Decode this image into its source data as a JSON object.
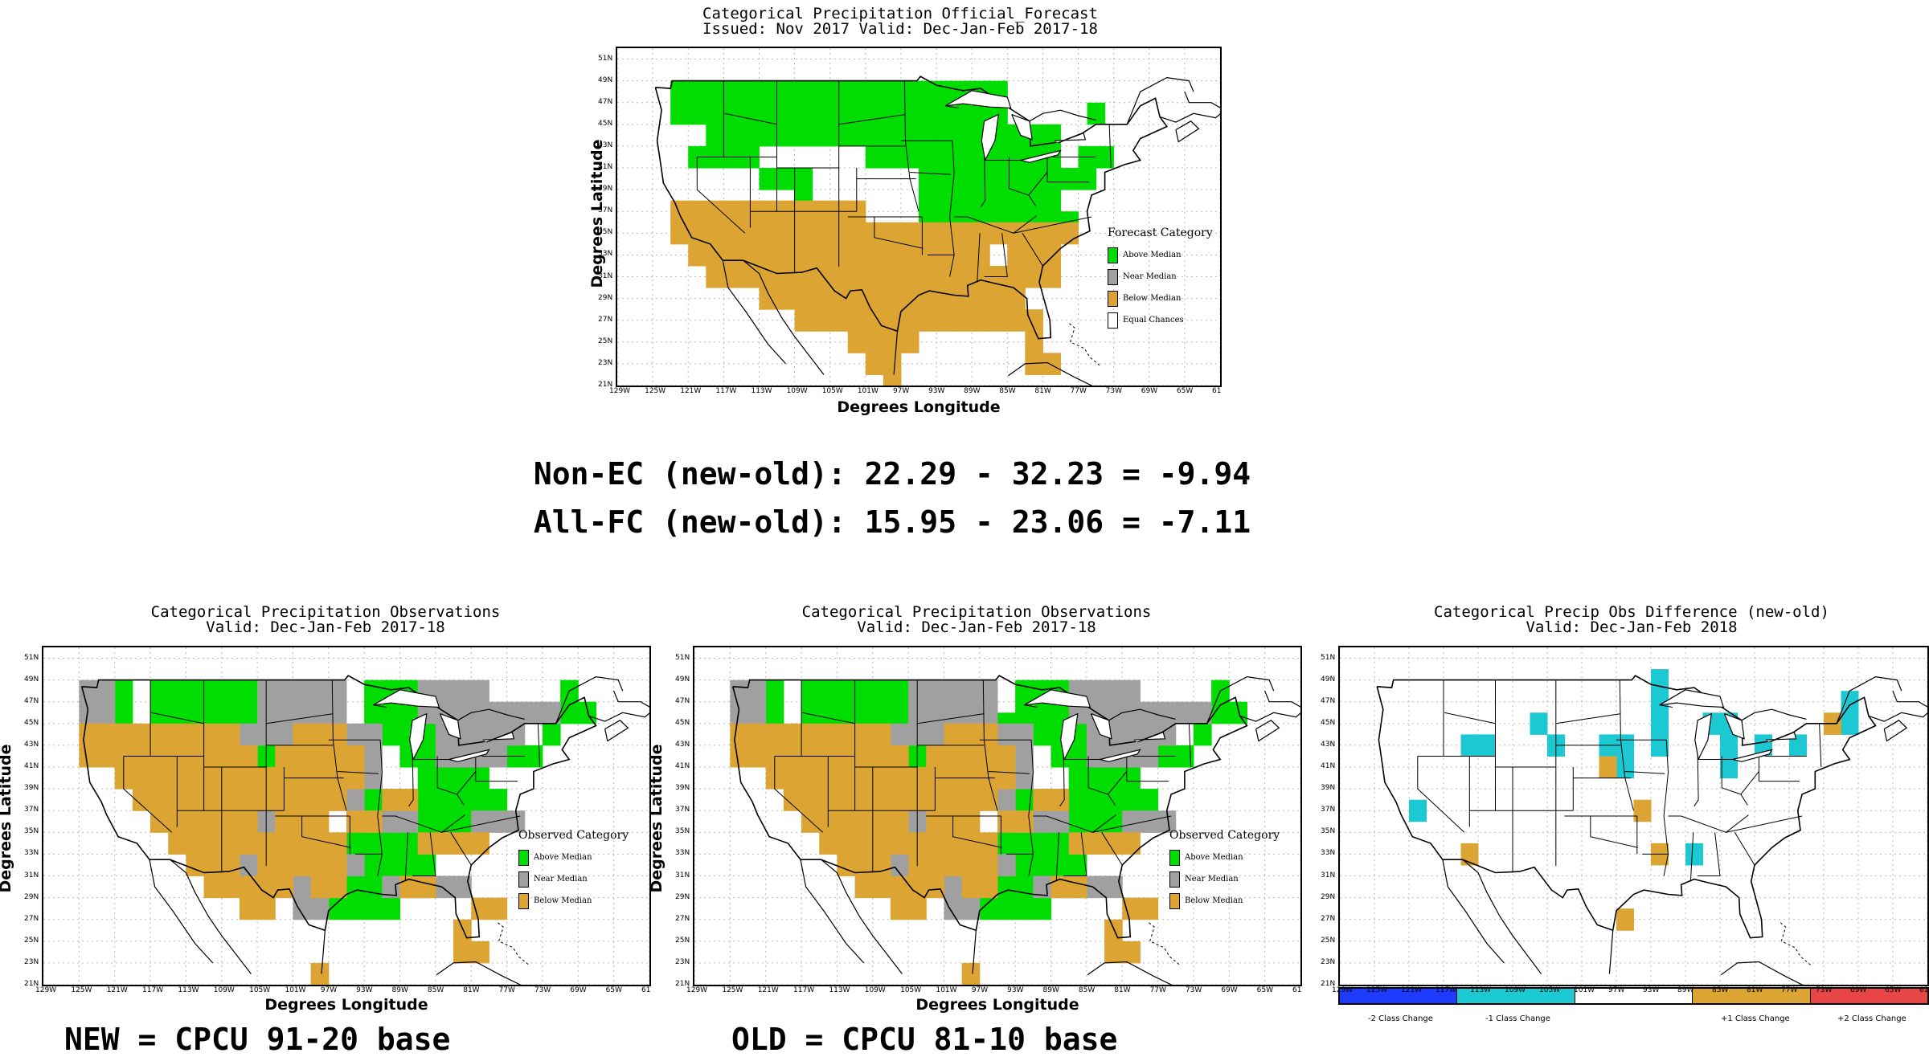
{
  "colors": {
    "above": "#00dd00",
    "near": "#a0a0a0",
    "below": "#dca533",
    "minus1": "#1cc8d2",
    "minus2": "#1e3cff",
    "plus2": "#e84646",
    "plus1": "#dca533"
  },
  "axes": {
    "ylabel": "Degrees Latitude",
    "xlabel": "Degrees Longitude",
    "lat_ticks": [
      "51N",
      "49N",
      "47N",
      "45N",
      "43N",
      "41N",
      "39N",
      "37N",
      "35N",
      "33N",
      "31N",
      "29N",
      "27N",
      "25N",
      "23N",
      "21N"
    ],
    "lon_ticks": [
      "129W",
      "125W",
      "121W",
      "117W",
      "113W",
      "109W",
      "105W",
      "101W",
      "97W",
      "93W",
      "89W",
      "85W",
      "81W",
      "77W",
      "73W",
      "69W",
      "65W",
      "61"
    ],
    "lon_ticks_diff": [
      "129W",
      "125W",
      "121W",
      "117W",
      "113W",
      "109W",
      "105W",
      "101W",
      "97W",
      "93W",
      "89W",
      "85W",
      "81W",
      "77W",
      "73W",
      "69W",
      "65W",
      "61W"
    ]
  },
  "forecast": {
    "title": "Categorical Precipitation Official_Forecast",
    "subtitle": "Issued: Nov 2017 Valid: Dec-Jan-Feb 2017-18",
    "legend_title": "Forecast Category",
    "legend": [
      "Above Median",
      "Near Median",
      "Below Median",
      "Equal Chances"
    ]
  },
  "stats": {
    "line1": "Non-EC (new-old): 22.29 - 32.23 = -9.94",
    "line2": "All-FC (new-old): 15.95 - 23.06 = -7.11"
  },
  "obs_new": {
    "title": "Categorical Precipitation Observations",
    "subtitle": "Valid: Dec-Jan-Feb 2017-18",
    "legend_title": "Observed Category",
    "legend": [
      "Above Median",
      "Near Median",
      "Below Median"
    ],
    "base_label": "NEW = CPCU 91-20 base"
  },
  "obs_old": {
    "title": "Categorical Precipitation Observations",
    "subtitle": "Valid: Dec-Jan-Feb 2017-18",
    "legend_title": "Observed Category",
    "legend": [
      "Above Median",
      "Near Median",
      "Below Median"
    ],
    "base_label": "OLD = CPCU 81-10 base"
  },
  "diff": {
    "title": "Categorical Precip Obs Difference (new-old)",
    "subtitle": "Valid: Dec-Jan-Feb 2018",
    "colorbar_labels": [
      "-2 Class Change",
      "-1 Class Change",
      "+1 Class Change",
      "+2 Class Change"
    ]
  }
}
